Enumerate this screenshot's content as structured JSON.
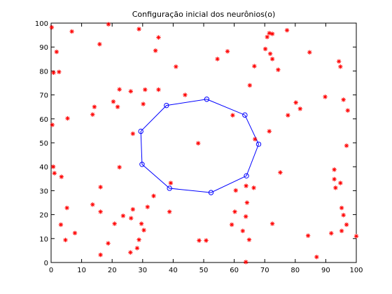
{
  "chart_data": {
    "type": "scatter",
    "title": "Configuração inicial dos neurônios(o)",
    "xlabel": "",
    "ylabel": "",
    "xlim": [
      0,
      100
    ],
    "ylim": [
      0,
      100
    ],
    "x_ticks": [
      0,
      10,
      20,
      30,
      40,
      50,
      60,
      70,
      80,
      90,
      100
    ],
    "y_ticks": [
      0,
      10,
      20,
      30,
      40,
      50,
      60,
      70,
      80,
      90,
      100
    ],
    "grid": false,
    "series": [
      {
        "marker": "asterisk",
        "color": "#ff0000",
        "points": [
          [
            0.2,
            98.2
          ],
          [
            18.8,
            99.5
          ],
          [
            28.8,
            97.5
          ],
          [
            6.8,
            96.5
          ],
          [
            35.2,
            94
          ],
          [
            15.9,
            91.2
          ],
          [
            34.2,
            88.5
          ],
          [
            1.8,
            88
          ],
          [
            0.8,
            79.3
          ],
          [
            2.6,
            79.6
          ],
          [
            40.9,
            81.8
          ],
          [
            54.5,
            85
          ],
          [
            57.8,
            88.2
          ],
          [
            66.6,
            82
          ],
          [
            65.1,
            74
          ],
          [
            70.2,
            89.2
          ],
          [
            70.8,
            94.2
          ],
          [
            71.5,
            95.8
          ],
          [
            72.5,
            95.5
          ],
          [
            71.8,
            87.2
          ],
          [
            72.5,
            85
          ],
          [
            74.4,
            80.5
          ],
          [
            77.3,
            97
          ],
          [
            84.7,
            87.8
          ],
          [
            94.3,
            84
          ],
          [
            94.8,
            81.8
          ],
          [
            22.4,
            72.3
          ],
          [
            26.1,
            71.5
          ],
          [
            30.8,
            72.2
          ],
          [
            35.2,
            72.2
          ],
          [
            43.9,
            70
          ],
          [
            20.4,
            67.2
          ],
          [
            30.2,
            66.2
          ],
          [
            21.8,
            65
          ],
          [
            14.2,
            65
          ],
          [
            13.6,
            61.8
          ],
          [
            5.4,
            60.2
          ],
          [
            0.4,
            57.5
          ],
          [
            26.8,
            53.8
          ],
          [
            59.5,
            61.5
          ],
          [
            77.6,
            61.5
          ],
          [
            80.2,
            66.8
          ],
          [
            81.6,
            64.2
          ],
          [
            89.8,
            69.2
          ],
          [
            95.8,
            68
          ],
          [
            97.2,
            63.5
          ],
          [
            66.8,
            51.5
          ],
          [
            71.5,
            54.8
          ],
          [
            96.8,
            48.8
          ],
          [
            48.2,
            49.8
          ],
          [
            0.7,
            40
          ],
          [
            1.1,
            37.3
          ],
          [
            3.4,
            35.8
          ],
          [
            22.4,
            39.8
          ],
          [
            39.2,
            33.2
          ],
          [
            60.5,
            30.1
          ],
          [
            63.9,
            32
          ],
          [
            66.4,
            31.2
          ],
          [
            75.1,
            37.6
          ],
          [
            92.8,
            38.8
          ],
          [
            92.8,
            34.8
          ],
          [
            94.8,
            33.2
          ],
          [
            93.2,
            31.2
          ],
          [
            16.2,
            31.5
          ],
          [
            13.6,
            24.2
          ],
          [
            16.2,
            21.2
          ],
          [
            33.6,
            27.8
          ],
          [
            31.6,
            23.2
          ],
          [
            38.8,
            21.2
          ],
          [
            26.8,
            22.2
          ],
          [
            23.6,
            19.5
          ],
          [
            26.2,
            18.5
          ],
          [
            5.2,
            22.8
          ],
          [
            3.2,
            15.8
          ],
          [
            20.8,
            16.2
          ],
          [
            29.6,
            16.2
          ],
          [
            64.2,
            25
          ],
          [
            60.2,
            21.2
          ],
          [
            63.8,
            19.2
          ],
          [
            95.2,
            22.8
          ],
          [
            95.8,
            19.8
          ],
          [
            59.2,
            15.8
          ],
          [
            62.8,
            13.2
          ],
          [
            72.5,
            16.2
          ],
          [
            84.2,
            11.2
          ],
          [
            91.8,
            12.2
          ],
          [
            95.2,
            13.2
          ],
          [
            96.8,
            15.8
          ],
          [
            100,
            11
          ],
          [
            30.4,
            13.5
          ],
          [
            7.8,
            12.3
          ],
          [
            4.7,
            9.4
          ],
          [
            18.7,
            8
          ],
          [
            28.8,
            9.5
          ],
          [
            48.5,
            9.2
          ],
          [
            50.8,
            9.2
          ],
          [
            64.9,
            9.5
          ],
          [
            28.2,
            6
          ],
          [
            26,
            4.2
          ],
          [
            16.2,
            3.2
          ],
          [
            87,
            2.3
          ],
          [
            63.8,
            0.2
          ]
        ]
      },
      {
        "marker": "circle",
        "color": "#0000ff",
        "connected": true,
        "closed": true,
        "points": [
          [
            51,
            68.2
          ],
          [
            63.5,
            61.6
          ],
          [
            68,
            49.4
          ],
          [
            64,
            36.2
          ],
          [
            52.4,
            29.2
          ],
          [
            38.8,
            31
          ],
          [
            29.8,
            41
          ],
          [
            29.4,
            54.8
          ],
          [
            37.8,
            65.6
          ]
        ]
      }
    ]
  }
}
